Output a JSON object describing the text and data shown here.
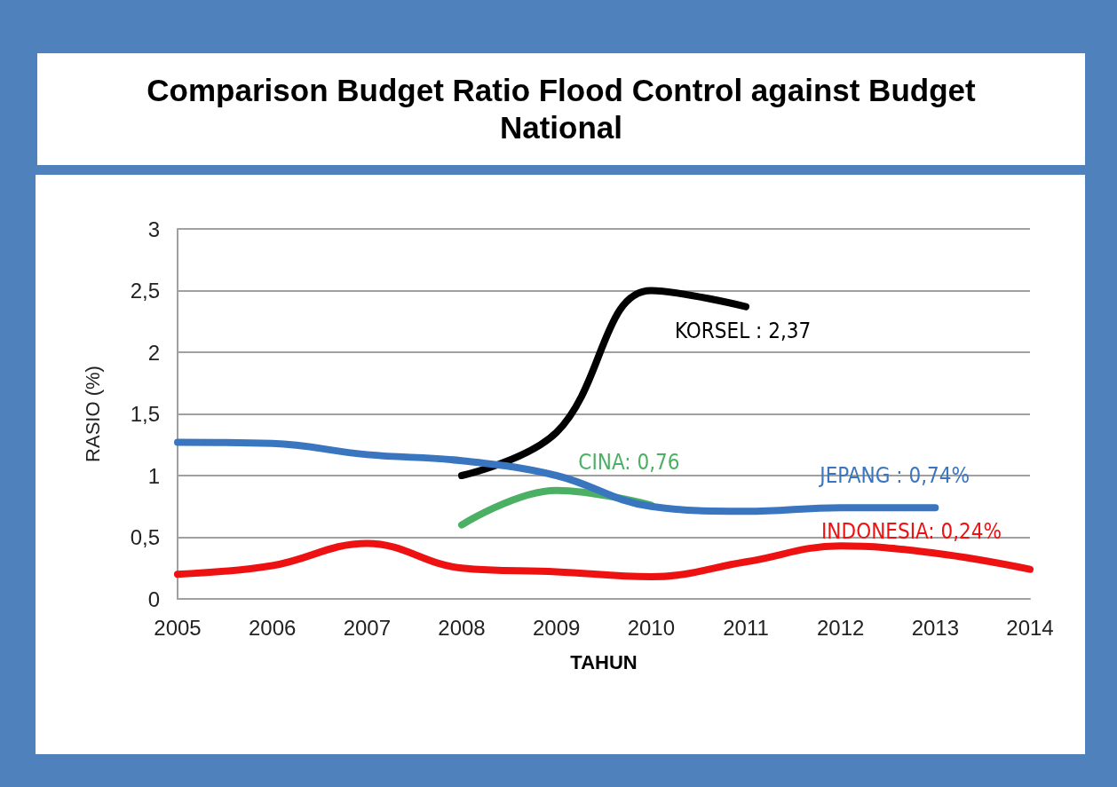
{
  "chart_data": {
    "type": "line",
    "title": "Comparison Budget Ratio Flood Control against Budget National",
    "xlabel": "TAHUN",
    "ylabel": "RASIO (%)",
    "categories": [
      "2005",
      "2006",
      "2007",
      "2008",
      "2009",
      "2010",
      "2011",
      "2012",
      "2013",
      "2014"
    ],
    "series": [
      {
        "color": "#000000",
        "values": [
          null,
          null,
          null,
          1.0,
          1.35,
          2.5,
          2.37,
          null,
          null,
          null
        ]
      },
      {
        "color": "#4bb064",
        "values": [
          null,
          null,
          null,
          0.6,
          0.88,
          0.76,
          null,
          null,
          null,
          null
        ]
      },
      {
        "color": "#3a75c0",
        "values": [
          1.27,
          1.26,
          1.17,
          1.12,
          1.0,
          0.75,
          0.71,
          0.74,
          0.74,
          null
        ]
      },
      {
        "color": "#ee1111",
        "values": [
          0.2,
          0.27,
          0.45,
          0.25,
          0.22,
          0.18,
          0.3,
          0.43,
          0.37,
          0.24
        ]
      }
    ],
    "annotations": [
      {
        "text": "KORSEL : 2,37",
        "x": "2011",
        "y": 2.37
      },
      {
        "text": "CINA: 0,76",
        "x": "2010",
        "y": 0.76
      },
      {
        "text": "JEPANG : 0,74%",
        "x": "2013",
        "y": 0.74
      },
      {
        "text": "INDONESIA: 0,24%",
        "x": "2014",
        "y": 0.24
      }
    ],
    "ylim": [
      0,
      3
    ],
    "yticks": [
      0,
      {
        "value": 0.5,
        "label": "0,5"
      },
      1,
      {
        "value": 1.5,
        "label": "1,5"
      },
      2,
      {
        "value": 2.5,
        "label": "2,5"
      },
      3
    ],
    "grid": "y",
    "marker": "none",
    "line_style": "solid"
  }
}
